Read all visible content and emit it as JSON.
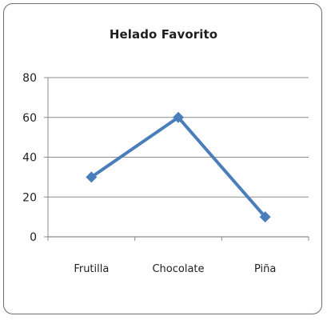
{
  "chart_data": {
    "type": "line",
    "title": "Helado Favorito",
    "xlabel": "",
    "ylabel": "",
    "categories": [
      "Frutilla",
      "Chocolate",
      "Piña"
    ],
    "series": [
      {
        "values": [
          30,
          60,
          10
        ],
        "color": "#4a7ebb",
        "marker": "diamond"
      }
    ],
    "ylim": [
      0,
      80
    ],
    "yticks": [
      0,
      20,
      40,
      60,
      80
    ],
    "grid": true,
    "legend": "none"
  }
}
